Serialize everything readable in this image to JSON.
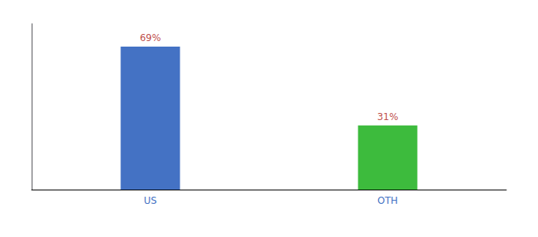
{
  "chart_data": {
    "type": "bar",
    "categories": [
      "US",
      "OTH"
    ],
    "values": [
      69,
      31
    ],
    "value_labels": [
      "69%",
      "31%"
    ],
    "data_labels": true,
    "colors": [
      "#4472c4",
      "#3dbb3d"
    ],
    "ylim": [
      0,
      80
    ],
    "grid": false,
    "tick_labels": "x"
  }
}
